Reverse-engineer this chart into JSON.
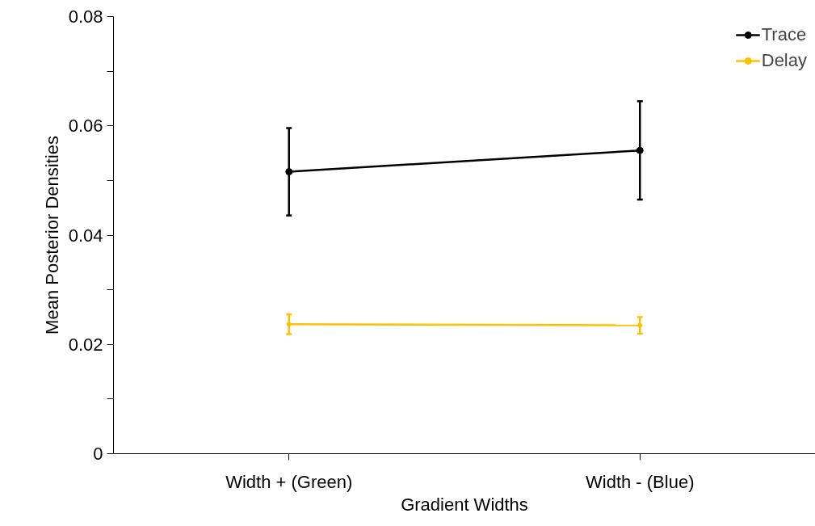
{
  "chart_data": {
    "type": "line",
    "xlabel": "Gradient Widths",
    "ylabel": "Mean Posterior Densities",
    "categories": [
      "Width + (Green)",
      "Width - (Blue)"
    ],
    "series": [
      {
        "name": "Trace",
        "color": "#000000",
        "values": [
          0.0516,
          0.0555
        ],
        "errors": [
          0.008,
          0.009
        ]
      },
      {
        "name": "Delay",
        "color": "#ffc000",
        "values": [
          0.0237,
          0.0235
        ],
        "errors": [
          0.0018,
          0.0015
        ]
      }
    ],
    "ylim": [
      0,
      0.08
    ],
    "yticks": [
      0,
      {
        "value": 0.01,
        "label": null
      },
      0.02,
      {
        "value": 0.03,
        "label": null
      },
      0.04,
      {
        "value": 0.05,
        "label": null
      },
      0.06,
      {
        "value": 0.07,
        "label": null
      },
      0.08
    ],
    "grid": false,
    "legend": "top right",
    "marker": "circle",
    "line_style": "solid"
  }
}
